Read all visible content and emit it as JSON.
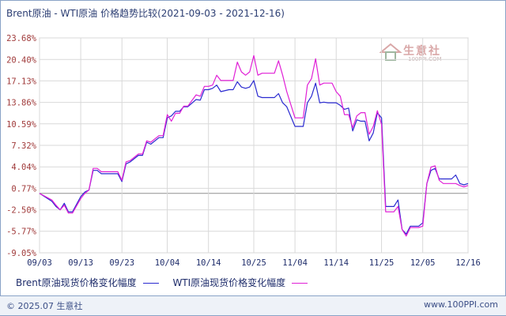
{
  "title": "Brent原油 - WTI原油 价格趋势比较(2021-09-03 - 2021-12-16)",
  "footer": {
    "copyright": "© 2025.07 生意社",
    "website": "www.100PPI.com"
  },
  "watermark": {
    "text": "生意社",
    "sub": "100PPI.COM"
  },
  "colors": {
    "brent": "#2a2ad0",
    "wti": "#e020d6",
    "grid": "#d9d9d9",
    "zero": "#8f8f8f"
  },
  "chart_data": {
    "type": "line",
    "title": "Brent原油 - WTI原油 价格趋势比较(2021-09-03 - 2021-12-16)",
    "xlabel": "",
    "ylabel": "",
    "y_ticks": [
      "23.68%",
      "20.40%",
      "17.13%",
      "13.86%",
      "10.59%",
      "7.32%",
      "4.04%",
      "0.77%",
      "-2.50%",
      "-5.77%",
      "-9.05%"
    ],
    "y_tick_values": [
      23.68,
      20.4,
      17.13,
      13.86,
      10.59,
      7.32,
      4.04,
      0.77,
      -2.5,
      -5.77,
      -9.05
    ],
    "ylim": [
      -9.05,
      23.68
    ],
    "x_ticks": [
      "09/03",
      "09/13",
      "09/23",
      "10/04",
      "10/14",
      "10/25",
      "11/04",
      "11/14",
      "11/25",
      "12/05",
      "12/16"
    ],
    "x_tick_values": [
      0,
      10,
      20,
      31,
      41,
      52,
      62,
      72,
      83,
      93,
      104
    ],
    "xlim": [
      0,
      104
    ],
    "grid": true,
    "legend_position": "bottom",
    "series": [
      {
        "name": "Brent原油现货价格变化幅度",
        "color_key": "brent",
        "x": [
          0,
          3,
          4,
          5,
          6,
          7,
          8,
          10,
          11,
          12,
          13,
          14,
          15,
          16,
          19,
          20,
          21,
          22,
          24,
          25,
          26,
          27,
          29,
          30,
          31,
          32,
          33,
          34,
          35,
          36,
          38,
          39,
          40,
          41,
          42,
          43,
          44,
          46,
          47,
          48,
          49,
          50,
          51,
          52,
          53,
          54,
          57,
          58,
          59,
          60,
          62,
          63,
          64,
          65,
          66,
          67,
          68,
          69,
          70,
          71,
          72,
          73,
          74,
          75,
          76,
          77,
          78,
          79,
          80,
          81,
          82,
          83,
          84,
          86,
          87,
          88,
          89,
          90,
          91,
          92,
          93,
          94,
          95,
          96,
          97,
          98,
          100,
          101,
          102,
          103,
          104
        ],
        "y": [
          0.0,
          -1.2,
          -2.0,
          -2.5,
          -1.5,
          -2.8,
          -2.8,
          -0.5,
          0.2,
          0.5,
          3.5,
          3.5,
          3.0,
          3.0,
          3.0,
          1.8,
          4.5,
          4.8,
          5.8,
          5.8,
          7.8,
          7.5,
          8.5,
          8.5,
          11.5,
          11.8,
          12.5,
          12.5,
          13.2,
          13.2,
          14.3,
          14.2,
          15.8,
          15.8,
          16.0,
          16.5,
          15.5,
          15.8,
          15.8,
          17.0,
          16.2,
          16.0,
          16.2,
          17.2,
          14.8,
          14.6,
          14.6,
          15.2,
          13.8,
          13.2,
          10.2,
          10.2,
          10.2,
          13.8,
          14.8,
          16.8,
          13.8,
          13.9,
          13.8,
          13.8,
          13.8,
          13.4,
          12.8,
          13.0,
          9.5,
          11.2,
          11.0,
          11.0,
          8.0,
          9.2,
          12.3,
          11.5,
          -2.0,
          -2.0,
          -1.0,
          -5.5,
          -6.2,
          -5.0,
          -5.0,
          -5.0,
          -4.5,
          1.5,
          3.5,
          3.8,
          2.2,
          2.2,
          2.2,
          2.8,
          1.5,
          1.3,
          1.5
        ]
      },
      {
        "name": "WTI原油现货价格变化幅度",
        "color_key": "wti",
        "x": [
          0,
          3,
          4,
          5,
          6,
          7,
          8,
          10,
          11,
          12,
          13,
          14,
          15,
          16,
          19,
          20,
          21,
          22,
          24,
          25,
          26,
          27,
          29,
          30,
          31,
          32,
          33,
          34,
          35,
          36,
          38,
          39,
          40,
          41,
          42,
          43,
          44,
          46,
          47,
          48,
          49,
          50,
          51,
          52,
          53,
          54,
          57,
          58,
          59,
          60,
          62,
          63,
          64,
          65,
          66,
          67,
          68,
          69,
          70,
          71,
          72,
          73,
          74,
          75,
          76,
          77,
          78,
          79,
          80,
          81,
          82,
          83,
          84,
          86,
          87,
          88,
          89,
          90,
          91,
          92,
          93,
          94,
          95,
          96,
          97,
          98,
          100,
          101,
          102,
          103,
          104
        ],
        "y": [
          0.0,
          -1.0,
          -1.8,
          -2.5,
          -1.8,
          -3.0,
          -3.0,
          -0.8,
          0.0,
          0.5,
          3.8,
          3.8,
          3.3,
          3.3,
          3.3,
          2.0,
          4.8,
          5.0,
          6.0,
          6.0,
          8.0,
          7.8,
          8.8,
          8.8,
          12.0,
          11.0,
          12.2,
          12.2,
          13.3,
          13.3,
          15.0,
          14.8,
          16.3,
          16.3,
          16.5,
          18.0,
          17.2,
          17.2,
          17.2,
          20.0,
          18.5,
          18.0,
          18.5,
          21.0,
          18.0,
          18.3,
          18.3,
          20.2,
          18.0,
          15.5,
          11.5,
          11.5,
          11.5,
          16.5,
          17.5,
          20.5,
          16.5,
          16.8,
          16.8,
          16.8,
          15.5,
          14.8,
          12.0,
          12.0,
          10.0,
          11.8,
          12.3,
          12.3,
          9.0,
          10.2,
          12.6,
          10.5,
          -2.8,
          -2.8,
          -2.0,
          -5.5,
          -6.5,
          -5.2,
          -5.2,
          -5.2,
          -5.0,
          1.5,
          4.0,
          4.2,
          2.0,
          1.5,
          1.5,
          1.5,
          1.2,
          1.0,
          1.2
        ]
      }
    ]
  },
  "legend": {
    "brent_label": "Brent原油现货价格变化幅度",
    "wti_label": "WTI原油现货价格变化幅度"
  }
}
